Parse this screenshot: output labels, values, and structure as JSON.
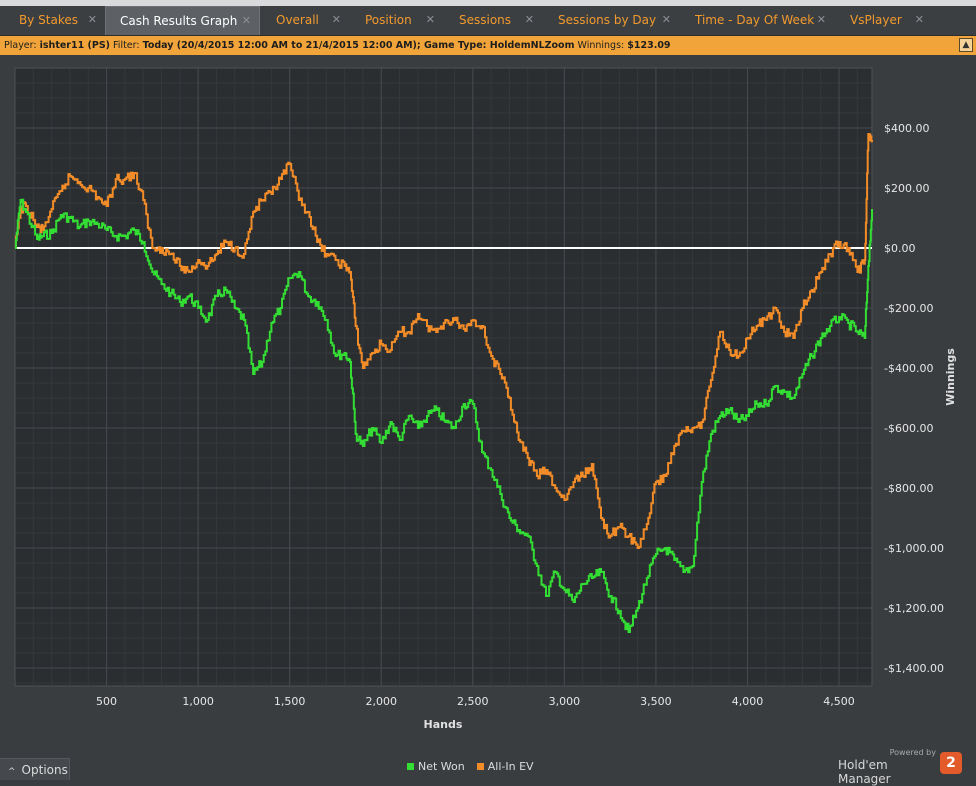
{
  "tabs": [
    {
      "label": "By Stakes",
      "active": false
    },
    {
      "label": "Cash Results Graph",
      "active": true
    },
    {
      "label": "Overall",
      "active": false
    },
    {
      "label": "Position",
      "active": false
    },
    {
      "label": "Sessions",
      "active": false
    },
    {
      "label": "Sessions by Day",
      "active": false
    },
    {
      "label": "Time - Day Of Week",
      "active": false
    },
    {
      "label": "VsPlayer",
      "active": false
    }
  ],
  "filter_bar": {
    "player_label": "Player:",
    "player_value": "ishter11 (PS)",
    "filter_label": "Filter:",
    "filter_value": "Today (20/4/2015 12:00 AM to 21/4/2015 12:00 AM); Game Type: HoldemNLZoom",
    "winnings_label": "Winnings:",
    "winnings_value": "$123.09",
    "collapse_icon": "up-chevron-icon"
  },
  "options": {
    "label": "Options",
    "icon": "up-caret-icon"
  },
  "brand": {
    "powered_by": "Powered by",
    "name": "Hold'em Manager",
    "logo": "2"
  },
  "colors": {
    "net_won": "#33dd33",
    "all_in_ev": "#f28c28",
    "zero_line": "#ffffff",
    "accent": "#f29a2e"
  },
  "chart_data": {
    "type": "line",
    "xlabel": "Hands",
    "ylabel": "Winnings",
    "xlim": [
      0,
      4680
    ],
    "ylim": [
      -1460,
      600
    ],
    "x_ticks": [
      500,
      1000,
      1500,
      2000,
      2500,
      3000,
      3500,
      4000,
      4500
    ],
    "x_tick_labels": [
      "500",
      "1,000",
      "1,500",
      "2,000",
      "2,500",
      "3,000",
      "3,500",
      "4,000",
      "4,500"
    ],
    "y_ticks": [
      400,
      200,
      0,
      -200,
      -400,
      -600,
      -800,
      -1000,
      -1200,
      -1400
    ],
    "y_tick_labels": [
      "$400.00",
      "$200.00",
      "$0.00",
      "-$200.00",
      "-$400.00",
      "-$600.00",
      "-$800.00",
      "-$1,000.00",
      "-$1,200.00",
      "-$1,400.00"
    ],
    "zero_line": 0,
    "grid": true,
    "legend_position": "bottom-center",
    "series": [
      {
        "name": "Net Won",
        "x": [
          0,
          30,
          60,
          120,
          150,
          200,
          250,
          300,
          350,
          400,
          450,
          500,
          550,
          600,
          650,
          700,
          750,
          800,
          850,
          900,
          950,
          1000,
          1050,
          1100,
          1150,
          1200,
          1250,
          1300,
          1350,
          1400,
          1450,
          1500,
          1550,
          1600,
          1650,
          1700,
          1750,
          1800,
          1830,
          1860,
          1900,
          1950,
          2000,
          2050,
          2100,
          2150,
          2200,
          2250,
          2300,
          2350,
          2400,
          2450,
          2500,
          2550,
          2600,
          2650,
          2700,
          2750,
          2800,
          2850,
          2900,
          2950,
          3000,
          3050,
          3100,
          3150,
          3200,
          3250,
          3300,
          3350,
          3400,
          3450,
          3500,
          3550,
          3600,
          3650,
          3700,
          3750,
          3800,
          3850,
          3900,
          3950,
          4000,
          4050,
          4100,
          4150,
          4200,
          4250,
          4300,
          4350,
          4400,
          4450,
          4500,
          4550,
          4600,
          4640,
          4660,
          4680
        ],
        "y": [
          0,
          160,
          120,
          30,
          40,
          50,
          110,
          100,
          70,
          90,
          80,
          60,
          40,
          40,
          60,
          20,
          -80,
          -120,
          -150,
          -180,
          -160,
          -200,
          -240,
          -160,
          -140,
          -200,
          -240,
          -420,
          -380,
          -250,
          -200,
          -100,
          -80,
          -160,
          -180,
          -240,
          -360,
          -350,
          -380,
          -620,
          -660,
          -600,
          -650,
          -580,
          -640,
          -560,
          -600,
          -560,
          -540,
          -580,
          -600,
          -520,
          -520,
          -680,
          -740,
          -820,
          -900,
          -940,
          -960,
          -1060,
          -1160,
          -1080,
          -1140,
          -1180,
          -1120,
          -1100,
          -1080,
          -1160,
          -1210,
          -1280,
          -1200,
          -1100,
          -1020,
          -1000,
          -1040,
          -1080,
          -1060,
          -780,
          -620,
          -560,
          -540,
          -580,
          -560,
          -520,
          -520,
          -460,
          -480,
          -500,
          -420,
          -360,
          -300,
          -260,
          -230,
          -250,
          -280,
          -300,
          -60,
          130
        ]
      },
      {
        "name": "All-In EV",
        "x": [
          0,
          30,
          60,
          120,
          150,
          200,
          250,
          300,
          350,
          400,
          450,
          500,
          550,
          600,
          650,
          700,
          750,
          800,
          850,
          900,
          950,
          1000,
          1050,
          1100,
          1150,
          1200,
          1250,
          1300,
          1350,
          1400,
          1450,
          1500,
          1550,
          1600,
          1650,
          1700,
          1750,
          1800,
          1830,
          1860,
          1900,
          1950,
          2000,
          2050,
          2100,
          2150,
          2200,
          2250,
          2300,
          2350,
          2400,
          2450,
          2500,
          2550,
          2600,
          2650,
          2700,
          2750,
          2800,
          2850,
          2900,
          2950,
          3000,
          3050,
          3100,
          3150,
          3200,
          3250,
          3300,
          3350,
          3400,
          3450,
          3500,
          3550,
          3600,
          3650,
          3700,
          3750,
          3800,
          3850,
          3900,
          3950,
          4000,
          4050,
          4100,
          4150,
          4200,
          4250,
          4300,
          4350,
          4400,
          4450,
          4500,
          4550,
          4600,
          4640,
          4660,
          4680
        ],
        "y": [
          0,
          130,
          140,
          70,
          60,
          130,
          190,
          240,
          220,
          200,
          170,
          140,
          230,
          230,
          250,
          160,
          0,
          0,
          -20,
          -60,
          -80,
          -40,
          -60,
          -20,
          20,
          0,
          -20,
          120,
          160,
          180,
          230,
          280,
          160,
          120,
          20,
          -20,
          -40,
          -60,
          -80,
          -260,
          -400,
          -350,
          -320,
          -340,
          -280,
          -280,
          -220,
          -260,
          -280,
          -240,
          -240,
          -270,
          -240,
          -260,
          -360,
          -420,
          -500,
          -640,
          -700,
          -760,
          -740,
          -800,
          -840,
          -780,
          -760,
          -720,
          -900,
          -960,
          -930,
          -960,
          -1000,
          -920,
          -780,
          -760,
          -660,
          -610,
          -600,
          -580,
          -440,
          -280,
          -340,
          -360,
          -300,
          -260,
          -240,
          -200,
          -280,
          -300,
          -200,
          -140,
          -80,
          -20,
          20,
          0,
          -80,
          -40,
          380,
          360
        ]
      }
    ]
  }
}
